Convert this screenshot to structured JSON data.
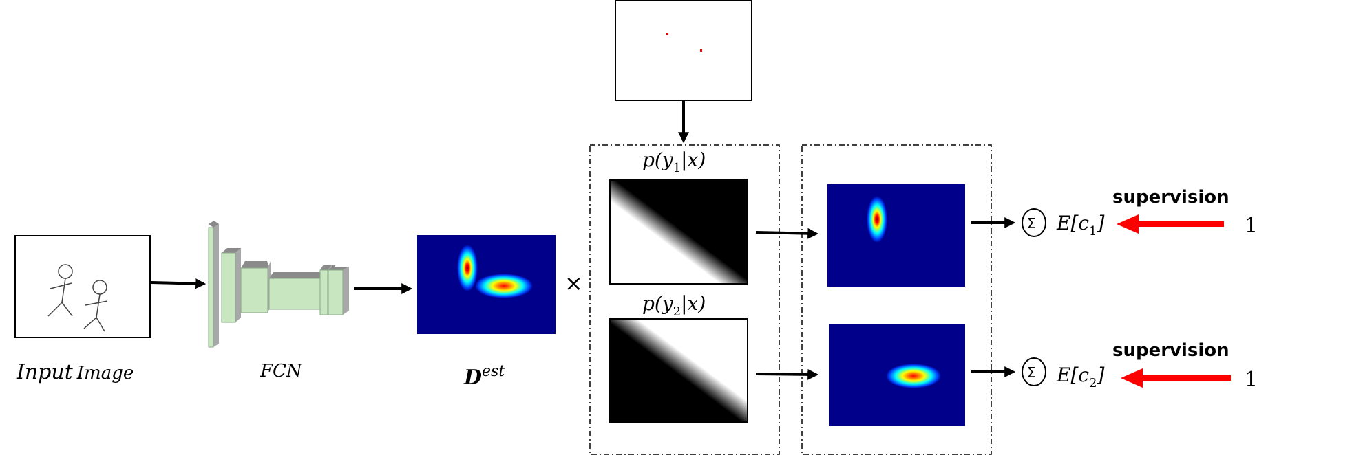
{
  "labels": {
    "input_word1": "Input",
    "input_word2": "Image",
    "fcn": "FCN",
    "density_base": "D",
    "density_sup": "est",
    "times": "×",
    "prob1": {
      "pre": "p(y",
      "sub": "1",
      "post": "|x)"
    },
    "prob2": {
      "pre": "p(y",
      "sub": "2",
      "post": "|x)"
    },
    "sigma": "Σ",
    "expect1": {
      "pre": "E[c",
      "sub": "1",
      "post": "]"
    },
    "expect2": {
      "pre": "E[c",
      "sub": "2",
      "post": "]"
    },
    "supervision1": "supervision",
    "supervision2": "supervision",
    "target1": "1",
    "target2": "1"
  },
  "colors": {
    "fcn_face": "#c8e6c0",
    "fcn_top": "#8a8a8a",
    "fcn_side": "#a8a8a8",
    "heat_bg": "#00008b",
    "red_arrow": "#ff0000",
    "dot": "#ff0000"
  }
}
